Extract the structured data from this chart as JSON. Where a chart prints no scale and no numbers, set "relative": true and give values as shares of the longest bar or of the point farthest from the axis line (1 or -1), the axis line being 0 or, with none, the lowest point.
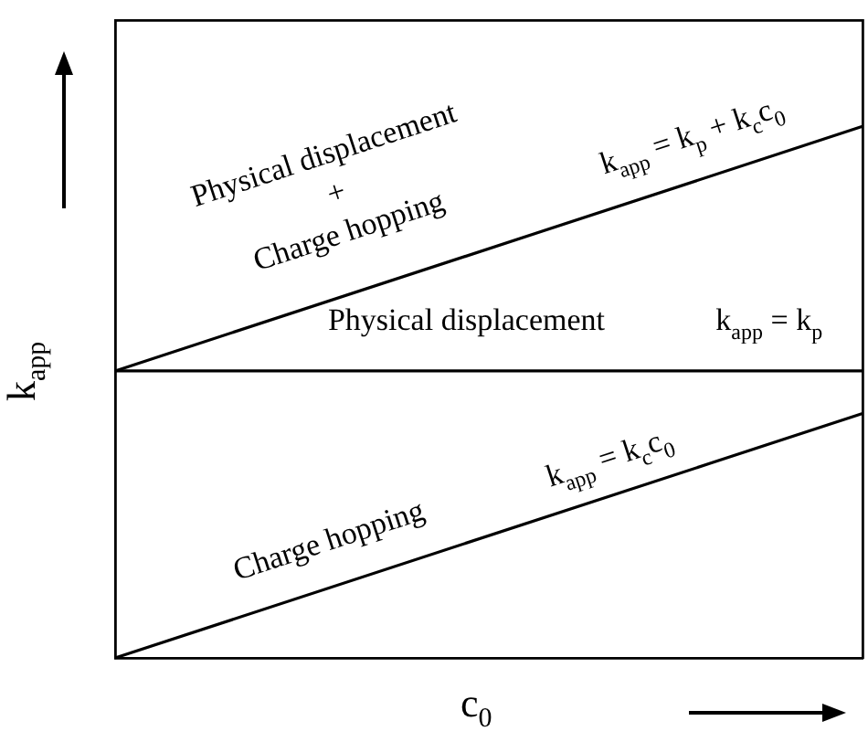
{
  "chart_data": {
    "type": "line",
    "relative": true,
    "xlabel": "c$_{0}$",
    "ylabel": "k$_{app}$",
    "categories": [
      null,
      null
    ],
    "series": [
      {
        "color": "#000000",
        "values": [
          0.54,
          1
        ]
      },
      {
        "color": "#000000",
        "values": [
          0.54,
          0.54
        ]
      },
      {
        "color": "#000000",
        "values": [
          0,
          0.46
        ]
      }
    ],
    "annotations": [
      "Physical displacement\n+\nCharge hopping",
      "k$_{app}$ = k$_{p}$ + k$_{c}$c$_{0}$",
      "Physical displacement",
      "k$_{app}$ = k$_{p}$",
      "Charge hopping",
      "k$_{app}$ = k$_{c}$c$_{0}$"
    ],
    "legend": false,
    "marker": "none",
    "line_style": "solid"
  }
}
